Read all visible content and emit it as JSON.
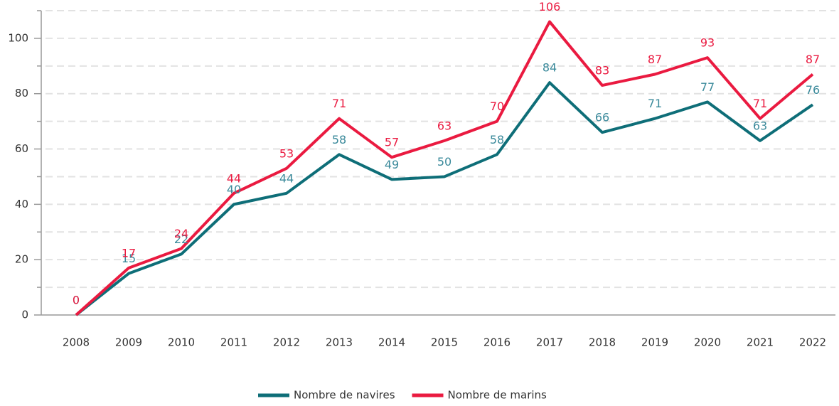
{
  "chart_data": {
    "type": "line",
    "categories": [
      "2008",
      "2009",
      "2010",
      "2011",
      "2012",
      "2013",
      "2014",
      "2015",
      "2016",
      "2017",
      "2018",
      "2019",
      "2020",
      "2021",
      "2022"
    ],
    "series": [
      {
        "name": "Nombre de navires",
        "color": "#0e6e78",
        "label_color": "#3b8a9b",
        "values": [
          0,
          15,
          22,
          40,
          44,
          58,
          49,
          50,
          58,
          84,
          66,
          71,
          77,
          63,
          76
        ]
      },
      {
        "name": "Nombre de marins",
        "color": "#ea1a40",
        "label_color": "#ea1a40",
        "values": [
          0,
          17,
          24,
          44,
          53,
          71,
          57,
          63,
          70,
          106,
          83,
          87,
          93,
          71,
          87
        ]
      }
    ],
    "ylim": [
      0,
      110
    ],
    "yticks": [
      0,
      20,
      40,
      60,
      80,
      100
    ],
    "minor_yticks": [
      10,
      30,
      50,
      70,
      90,
      110
    ],
    "grid": true,
    "legend": "bottom"
  }
}
